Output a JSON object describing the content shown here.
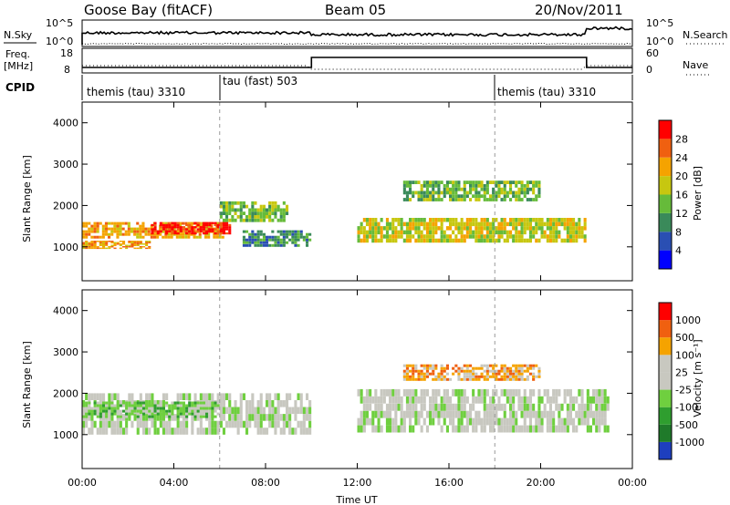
{
  "header": {
    "station": "Goose Bay (fitACF)",
    "beam": "Beam 05",
    "date": "20/Nov/2011"
  },
  "summary_panels": {
    "nsky_label": "N.Sky",
    "nsearch_label": "N.Search",
    "nsky_ticks": [
      "10^5",
      "10^0"
    ],
    "nsearch_ticks": [
      "10^5",
      "10^0"
    ],
    "freq_label_1": "Freq.",
    "freq_label_2": "[MHz]",
    "freq_ticks": [
      "18",
      "8"
    ],
    "nave_label": "Nave",
    "nave_ticks": [
      "60",
      "0"
    ],
    "cpid_label": "CPID",
    "cpid_segments": [
      {
        "label": "themis (tau) 3310",
        "start_hour": 0
      },
      {
        "label": "tau (fast) 503",
        "start_hour": 6
      },
      {
        "label": "themis (tau) 3310",
        "start_hour": 18
      }
    ]
  },
  "axes": {
    "ylabel": "Slant Range [km]",
    "xlabel": "Time UT",
    "x_ticks": [
      "00:00",
      "04:00",
      "08:00",
      "12:00",
      "16:00",
      "20:00",
      "00:00"
    ],
    "y_ticks": [
      "1000",
      "2000",
      "3000",
      "4000"
    ]
  },
  "chart_data": [
    {
      "type": "heatmap",
      "name": "power",
      "xlabel": "Time UT",
      "ylabel": "Slant Range [km]",
      "xlim": [
        0,
        24
      ],
      "ylim": [
        180,
        4500
      ],
      "colorbar_label": "Power [dB]",
      "colorbar_ticks": [
        "4",
        "8",
        "12",
        "16",
        "20",
        "24",
        "28"
      ],
      "colors": [
        "#0000ff",
        "#2a4fb3",
        "#3a8a5a",
        "#66bb3a",
        "#c7c710",
        "#f5a300",
        "#f06010",
        "#ff0000"
      ],
      "regions": [
        {
          "t0": 0.0,
          "t1": 6.2,
          "r0": 1200,
          "r1": 1600,
          "level": 5
        },
        {
          "t0": 3.0,
          "t1": 6.5,
          "r0": 1300,
          "r1": 1600,
          "level": 7
        },
        {
          "t0": 0.0,
          "t1": 3.0,
          "r0": 950,
          "r1": 1150,
          "level": 5
        },
        {
          "t0": 6.0,
          "t1": 9.0,
          "r0": 1600,
          "r1": 2100,
          "level": 3
        },
        {
          "t0": 7.0,
          "t1": 10.0,
          "r0": 1000,
          "r1": 1400,
          "level": 2
        },
        {
          "t0": 12.0,
          "t1": 22.0,
          "r0": 1100,
          "r1": 1700,
          "level": 4
        },
        {
          "t0": 14.0,
          "t1": 20.0,
          "r0": 2100,
          "r1": 2600,
          "level": 3
        }
      ]
    },
    {
      "type": "heatmap",
      "name": "velocity",
      "xlabel": "Time UT",
      "ylabel": "Slant Range [km]",
      "xlim": [
        0,
        24
      ],
      "ylim": [
        180,
        4500
      ],
      "colorbar_label": "Velocity [m s⁻¹]",
      "colorbar_ticks": [
        "1000",
        "500",
        "100",
        "25",
        "-25",
        "-100",
        "-500",
        "-1000"
      ],
      "colors": [
        "#1e3fbf",
        "#1f7a2a",
        "#2f9e2f",
        "#6fcf3f",
        "#c8c8c0",
        "#c8c8c0",
        "#f5a300",
        "#f06010",
        "#ff0000"
      ],
      "regions": [
        {
          "t0": 0.0,
          "t1": 10.0,
          "r0": 1000,
          "r1": 2000,
          "level": 4
        },
        {
          "t0": 12.0,
          "t1": 23.0,
          "r0": 1050,
          "r1": 2100,
          "level": 4
        },
        {
          "t0": 0.0,
          "t1": 6.0,
          "r0": 1400,
          "r1": 1800,
          "level": 3
        },
        {
          "t0": 14.0,
          "t1": 20.0,
          "r0": 2300,
          "r1": 2700,
          "level": 6
        }
      ]
    }
  ]
}
